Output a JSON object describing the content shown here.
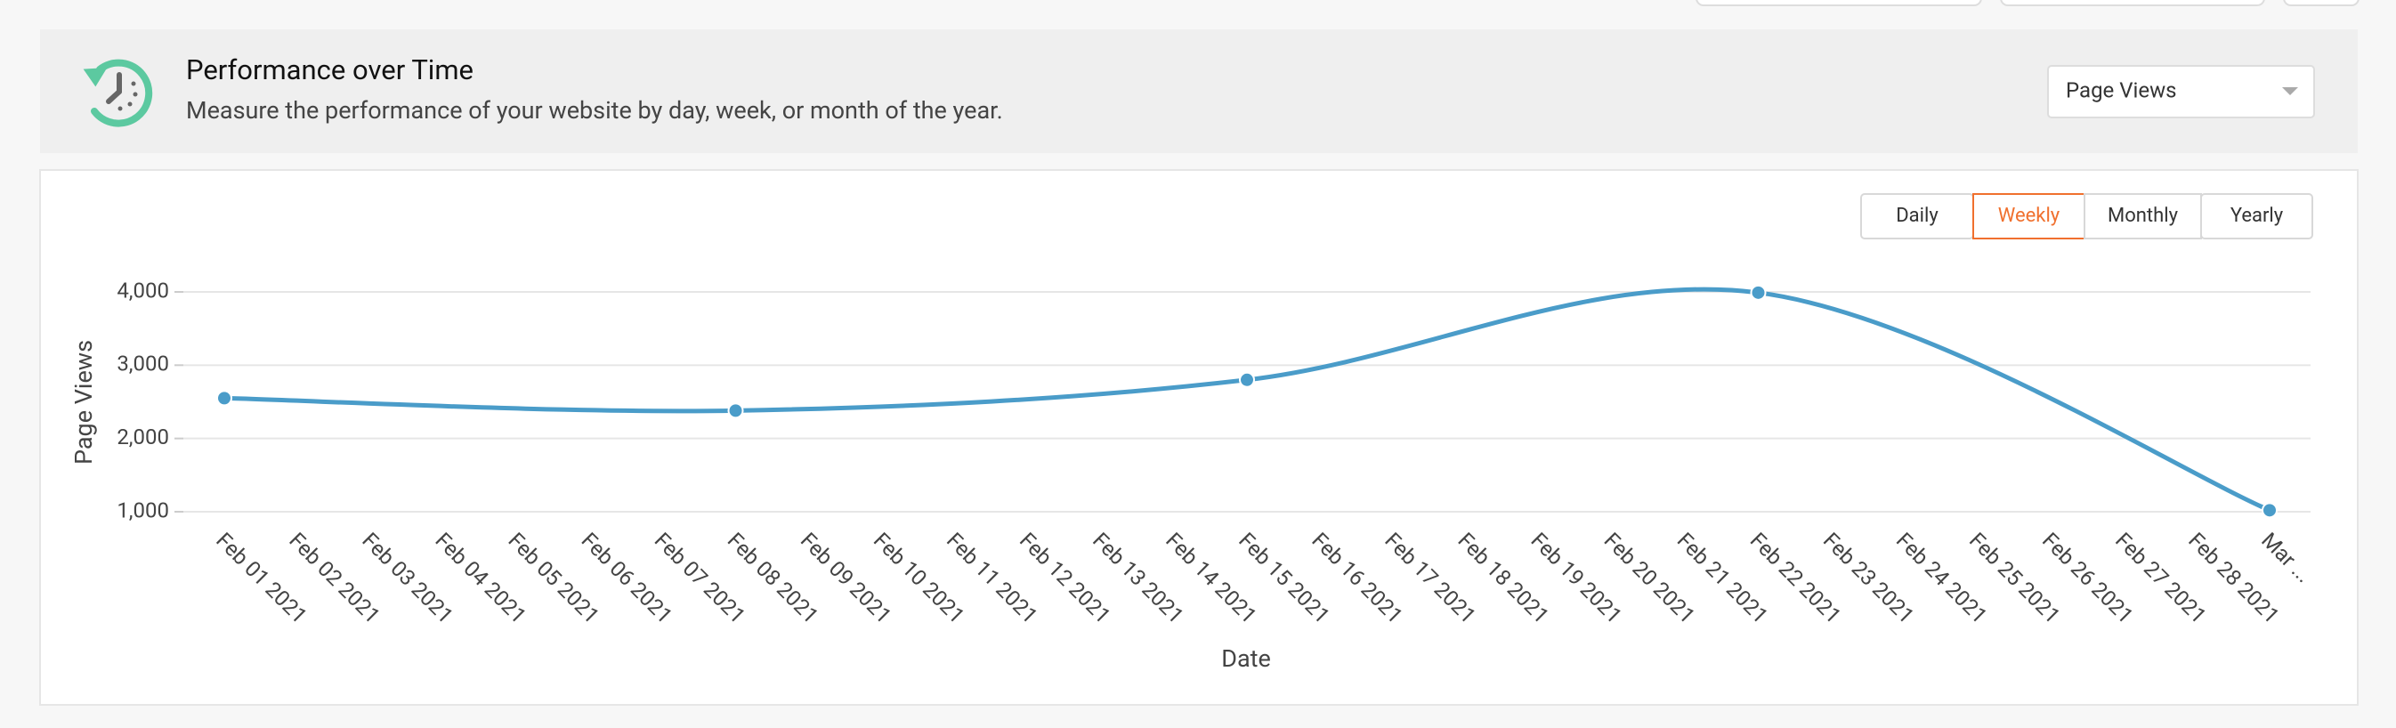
{
  "chart_data": {
    "type": "line",
    "title": "Performance over Time",
    "subtitle": "Measure the performance of your website by day, week, or month of the year.",
    "x_label": "Date",
    "y_label": "Page Views",
    "categories": [
      "Feb 01 2021",
      "Feb 02 2021",
      "Feb 03 2021",
      "Feb 04 2021",
      "Feb 05 2021",
      "Feb 06 2021",
      "Feb 07 2021",
      "Feb 08 2021",
      "Feb 09 2021",
      "Feb 10 2021",
      "Feb 11 2021",
      "Feb 12 2021",
      "Feb 13 2021",
      "Feb 14 2021",
      "Feb 15 2021",
      "Feb 16 2021",
      "Feb 17 2021",
      "Feb 18 2021",
      "Feb 19 2021",
      "Feb 20 2021",
      "Feb 21 2021",
      "Feb 22 2021",
      "Feb 23 2021",
      "Feb 24 2021",
      "Feb 25 2021",
      "Feb 26 2021",
      "Feb 27 2021",
      "Feb 28 2021",
      "Mar ..."
    ],
    "series": [
      {
        "name": "Page Views",
        "color": "#4a9cc9",
        "x": [
          "Feb 01 2021",
          "Feb 08 2021",
          "Feb 15 2021",
          "Feb 22 2021",
          "Mar ..."
        ],
        "values": [
          2550,
          2380,
          2800,
          3990,
          1020
        ]
      }
    ],
    "ylim": [
      1000,
      4000
    ],
    "yticks": [
      {
        "value": 1000,
        "label": "1,000"
      },
      {
        "value": 2000,
        "label": "2,000"
      },
      {
        "value": 3000,
        "label": "3,000"
      },
      {
        "value": 4000,
        "label": "4,000"
      }
    ],
    "grid": true
  },
  "controls": {
    "metric": "Page Views",
    "periods": [
      "Daily",
      "Weekly",
      "Monthly",
      "Yearly"
    ],
    "active_period": "Weekly"
  }
}
